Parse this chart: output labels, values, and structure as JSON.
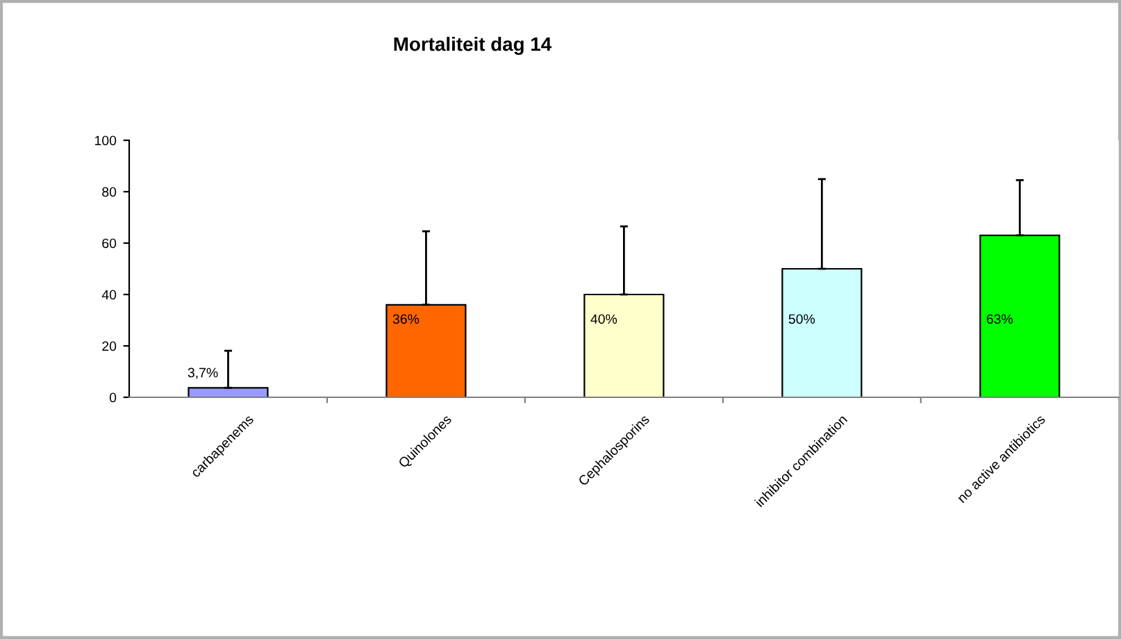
{
  "chart_data": {
    "type": "bar",
    "title": "Mortaliteit dag 14",
    "categories": [
      "carbapenems",
      "Quinolones",
      "Cephalosporins",
      "inhibitor combination",
      "no active antibiotics"
    ],
    "values": [
      3.7,
      36,
      40,
      50,
      63
    ],
    "colors": [
      "#9999ff",
      "#ff6600",
      "#ffffcc",
      "#ccffff",
      "#00ff00"
    ],
    "errors": [
      [
        3.7,
        18.1
      ],
      [
        36,
        64.6
      ],
      [
        40,
        66.5
      ],
      [
        50,
        84.9
      ],
      [
        63,
        84.5
      ]
    ],
    "value_labels": [
      "3,7%",
      "36%",
      "40%",
      "50%",
      "63%"
    ],
    "ylim": [
      0,
      100
    ],
    "yticks": [
      0,
      20,
      40,
      60,
      80,
      100
    ],
    "grid": false,
    "legend": false
  }
}
